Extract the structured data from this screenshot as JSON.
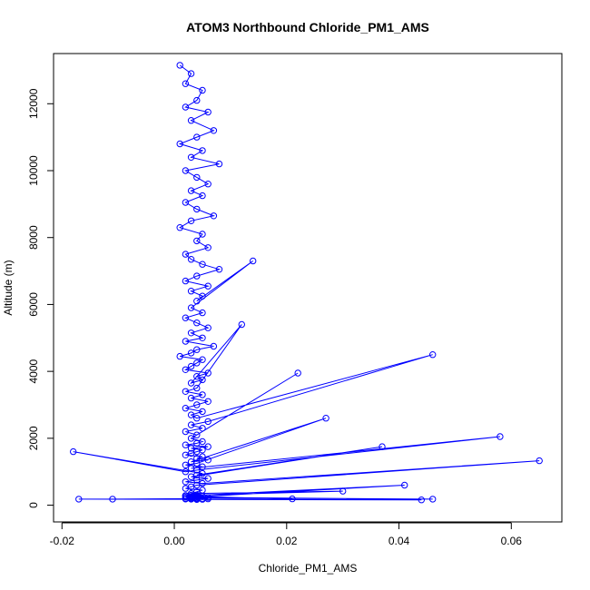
{
  "chart_data": {
    "type": "line",
    "title": "ATOM3 Northbound Chloride_PM1_AMS",
    "xlabel": "Chloride_PM1_AMS",
    "ylabel": "Altitude (m)",
    "xlim": [
      -0.0215,
      0.069
    ],
    "ylim": [
      -500,
      13500
    ],
    "x_ticks": [
      -0.02,
      0.0,
      0.02,
      0.04,
      0.06
    ],
    "x_tick_labels": [
      "-0.02",
      "0.00",
      "0.02",
      "0.04",
      "0.06"
    ],
    "y_ticks": [
      0,
      2000,
      4000,
      6000,
      8000,
      10000,
      12000
    ],
    "y_tick_labels": [
      "0",
      "2000",
      "4000",
      "6000",
      "8000",
      "10000",
      "12000"
    ],
    "grid": false,
    "legend": "none",
    "series_color": "#0000ff",
    "marker": "open-circle",
    "series": [
      {
        "x": [
          0.001,
          0.003,
          0.002,
          0.005,
          0.004,
          0.002,
          0.006,
          0.003,
          0.007,
          0.004,
          0.001,
          0.005,
          0.003,
          0.008,
          0.002,
          0.004,
          0.006,
          0.003,
          0.005,
          0.002,
          0.004,
          0.007,
          0.003,
          0.001,
          0.005,
          0.004,
          0.006,
          0.002,
          0.003,
          0.005,
          0.008,
          0.004,
          0.002,
          0.006,
          0.003,
          0.005,
          0.004,
          0.014,
          0.003,
          0.005,
          0.002,
          0.004,
          0.006,
          0.003,
          0.005,
          0.002,
          0.007,
          0.004,
          0.003,
          0.001,
          0.005,
          0.004,
          0.003,
          0.002,
          0.006,
          0.004,
          0.005,
          0.003,
          0.012,
          0.004,
          0.002,
          0.005,
          0.003,
          0.006,
          0.004,
          0.002,
          0.005,
          0.003,
          0.004,
          0.046,
          0.006,
          0.003,
          0.005,
          0.002,
          0.004,
          0.022,
          0.003,
          0.005,
          0.004,
          0.002,
          0.006,
          0.003,
          0.005,
          0.004,
          0.003,
          0.002,
          0.005,
          0.004,
          0.006,
          0.003,
          0.027,
          0.004,
          0.002,
          0.005,
          0.003,
          0.058,
          0.004,
          0.002,
          -0.018,
          0.005,
          0.004,
          0.037,
          0.003,
          0.006,
          0.004,
          0.002,
          0.005,
          0.065,
          0.004,
          0.003,
          0.002,
          0.005,
          0.004,
          0.003,
          0.03,
          0.004,
          0.002,
          0.041,
          0.005,
          0.003,
          0.004,
          0.002,
          0.006,
          0.003,
          0.044,
          0.004,
          0.005,
          -0.017,
          0.002,
          0.004,
          0.003,
          -0.011,
          0.005,
          0.004,
          0.003,
          0.046,
          0.006,
          0.002,
          0.004,
          0.021,
          0.003,
          0.005,
          0.004,
          0.002,
          0.003
        ],
        "y": [
          13150,
          12900,
          12600,
          12400,
          12100,
          11900,
          11750,
          11500,
          11200,
          11000,
          10800,
          10600,
          10400,
          10200,
          10000,
          9800,
          9600,
          9400,
          9250,
          9050,
          8850,
          8650,
          8500,
          8300,
          8100,
          7900,
          7700,
          7500,
          7350,
          7200,
          7050,
          6850,
          6700,
          6550,
          6400,
          6250,
          6100,
          7300,
          5900,
          5750,
          5600,
          5450,
          5300,
          5150,
          5000,
          4900,
          4750,
          4650,
          4550,
          4450,
          4350,
          4250,
          4150,
          4050,
          3950,
          3850,
          3750,
          3650,
          5400,
          3500,
          3400,
          3300,
          3200,
          3100,
          3000,
          2900,
          2800,
          2700,
          2600,
          4500,
          2500,
          2400,
          2300,
          2200,
          2100,
          3950,
          2000,
          1900,
          1850,
          1800,
          1750,
          1700,
          1650,
          1600,
          1550,
          1500,
          1450,
          1400,
          1350,
          1300,
          2600,
          1250,
          1200,
          1150,
          1100,
          2050,
          1050,
          1000,
          1600,
          950,
          900,
          1750,
          850,
          800,
          750,
          700,
          650,
          1330,
          600,
          550,
          500,
          450,
          400,
          350,
          420,
          300,
          280,
          600,
          260,
          240,
          220,
          200,
          190,
          180,
          160,
          170,
          175,
          180,
          185,
          190,
          195,
          180,
          200,
          210,
          220,
          180,
          230,
          240,
          250,
          190,
          260,
          270,
          280,
          290,
          300
        ]
      }
    ]
  }
}
